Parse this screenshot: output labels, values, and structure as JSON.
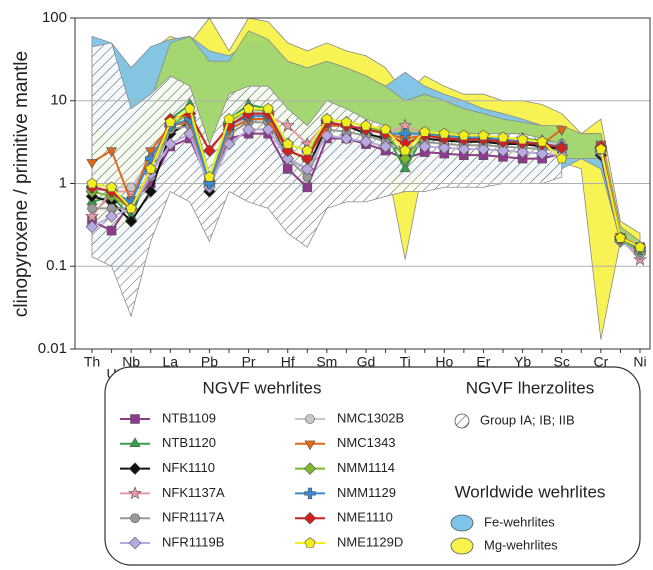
{
  "chart_data": {
    "type": "line",
    "y_label": "clinopyroxene / primitive mantle",
    "log_scale": true,
    "grid": true,
    "ylim": [
      0.01,
      100
    ],
    "yticks": [
      0.01,
      0.1,
      1,
      10,
      100
    ],
    "categories": [
      "Th",
      "U",
      "Nb",
      "Ta",
      "La",
      "Ce",
      "Pb",
      "Sr",
      "Pr",
      "Nd",
      "Hf",
      "Zr",
      "Sm",
      "Eu",
      "Gd",
      "Tb",
      "Ti",
      "Dy",
      "Ho",
      "Y",
      "Er",
      "Tm",
      "Yb",
      "Lu",
      "Sc",
      "V",
      "Cr",
      "Co",
      "Ni"
    ],
    "legend_headings": {
      "wehrlites": "NGVF wehrlites",
      "lherzolites": "NGVF lherzolites",
      "worldwide": "Worldwide wehrlites"
    },
    "fields": [
      {
        "name": "Mg-wehrlites",
        "color": "#f7f24c",
        "legend": "worldwide",
        "upper": [
          40,
          45,
          25,
          40,
          60,
          50,
          100,
          40,
          100,
          90,
          50,
          40,
          50,
          40,
          35,
          25,
          12,
          20,
          15,
          12,
          12,
          10,
          10,
          9,
          7,
          4,
          6,
          0.35,
          0.25
        ],
        "lower": [
          0.8,
          0.9,
          0.4,
          1,
          2,
          3,
          0.9,
          3,
          3,
          3,
          1.5,
          1.2,
          2.5,
          2.5,
          2.2,
          2,
          0.12,
          2,
          2,
          1.9,
          1.8,
          1.8,
          1.8,
          1.8,
          1.8,
          1.5,
          0.013,
          0.2,
          0.15
        ]
      },
      {
        "name": "Fe-wehrlites",
        "color": "#7dc3ea",
        "legend": "worldwide",
        "upper": [
          60,
          50,
          25,
          45,
          55,
          60,
          40,
          35,
          50,
          50,
          30,
          25,
          30,
          25,
          20,
          15,
          22,
          15,
          12,
          10,
          8,
          7,
          6,
          5,
          4,
          4,
          4,
          0.3,
          0.2
        ],
        "lower": [
          0.2,
          0.1,
          0.08,
          0.5,
          1.5,
          2,
          0.5,
          2,
          2,
          2.5,
          1,
          0.6,
          2,
          2,
          1.8,
          1.5,
          1,
          1.5,
          1.3,
          1.2,
          1.2,
          1.1,
          1.1,
          1.1,
          1.5,
          2,
          1.5,
          0.2,
          0.15
        ]
      },
      {
        "color": "#a5d86c",
        "upper": [
          5,
          4,
          5,
          10,
          50,
          60,
          30,
          30,
          70,
          55,
          30,
          25,
          30,
          25,
          20,
          15,
          10,
          12,
          10,
          8,
          7,
          6,
          5.5,
          5,
          5,
          4,
          4,
          0.3,
          0.2
        ],
        "lower": [
          0.3,
          0.3,
          0.3,
          0.8,
          2.5,
          3,
          0.7,
          3,
          3.5,
          3.5,
          1.4,
          0.8,
          3,
          3,
          2.8,
          2.3,
          1.5,
          2.2,
          2,
          2,
          2,
          1.9,
          1.9,
          1.8,
          2,
          2,
          2,
          0.2,
          0.15
        ]
      },
      {
        "name": "Group IA; IB; IIB",
        "color": "#444444",
        "legend": "lherzolites",
        "hatch": true,
        "upper": [
          45,
          50,
          8,
          12,
          20,
          15,
          3,
          12,
          15,
          15,
          8,
          5,
          10,
          8,
          6,
          5,
          3,
          4,
          4,
          4,
          4,
          4,
          4,
          3.5,
          3,
          null,
          null,
          null,
          null
        ],
        "lower": [
          0.13,
          0.1,
          0.025,
          0.2,
          0.8,
          0.6,
          0.2,
          0.8,
          0.6,
          0.5,
          0.25,
          0.17,
          0.5,
          0.6,
          0.6,
          0.7,
          0.8,
          0.8,
          0.9,
          0.9,
          0.9,
          1,
          1,
          1,
          1.2,
          null,
          null,
          null,
          null
        ]
      }
    ],
    "series": [
      {
        "name": "NTB1109",
        "color": "#8e3a8e",
        "marker": "square",
        "values": [
          0.35,
          0.27,
          0.6,
          1.0,
          2.8,
          3.5,
          1.0,
          3.5,
          4,
          4,
          1.5,
          0.9,
          3.5,
          3.5,
          3,
          2.5,
          2,
          2.4,
          2.3,
          2.2,
          2.2,
          2.1,
          2,
          2,
          2.3,
          null,
          2.8,
          0.22,
          0.17
        ]
      },
      {
        "name": "NTB1120",
        "color": "#35a048",
        "marker": "triangle",
        "values": [
          0.6,
          0.7,
          0.4,
          1.5,
          6,
          9,
          1.2,
          6,
          9,
          8,
          2.5,
          2,
          6,
          5.5,
          5,
          4,
          1.5,
          4,
          3.8,
          3.5,
          3.6,
          3.5,
          3.5,
          3.3,
          3,
          null,
          2.8,
          0.22,
          0.16
        ]
      },
      {
        "name": "NFK1110",
        "color": "#111111",
        "marker": "diamond",
        "values": [
          0.7,
          0.6,
          0.35,
          0.8,
          4,
          5.5,
          0.8,
          4.5,
          6,
          6,
          2,
          1.5,
          5,
          5,
          4,
          3.5,
          2.2,
          3.5,
          3.3,
          3.2,
          3.2,
          3,
          3,
          2.8,
          2.6,
          null,
          2.2,
          0.2,
          0.15
        ]
      },
      {
        "name": "NFK1137A",
        "color": "#e79aa8",
        "marker": "star",
        "values": [
          0.4,
          0.8,
          0.8,
          1.8,
          5,
          6,
          1.0,
          5,
          7,
          6.5,
          5,
          3,
          5.5,
          5,
          4.5,
          4,
          5,
          4,
          3.8,
          3.6,
          3.6,
          3.5,
          3.3,
          3,
          2.8,
          null,
          2.5,
          0.22,
          0.12
        ]
      },
      {
        "name": "NFR1117A",
        "color": "#999999",
        "marker": "circle",
        "values": [
          0.5,
          0.5,
          0.5,
          1.2,
          4.5,
          5,
          0.9,
          4,
          5.5,
          5.5,
          2,
          1.2,
          4.5,
          4.2,
          3.8,
          3.2,
          2.5,
          3.2,
          3,
          2.9,
          2.9,
          2.8,
          2.7,
          2.6,
          2.5,
          null,
          2.5,
          0.21,
          0.16
        ]
      },
      {
        "name": "NFR1119B",
        "color": "#b9a9e2",
        "marker": "diamond",
        "values": [
          0.3,
          0.4,
          0.5,
          1.3,
          3,
          4,
          0.9,
          3,
          4.5,
          4.5,
          2,
          1.5,
          3.8,
          3.5,
          3.2,
          2.8,
          2.8,
          2.8,
          2.7,
          2.6,
          2.6,
          2.5,
          2.4,
          2.3,
          2.2,
          null,
          2.4,
          0.2,
          0.14
        ]
      },
      {
        "name": "NMC1302B",
        "color": "#c8c8c8",
        "marker": "circle",
        "values": [
          0.8,
          0.9,
          0.9,
          2,
          5.5,
          6.5,
          1.1,
          5,
          7.5,
          7,
          3,
          2.5,
          6,
          5.5,
          5,
          4.5,
          3.5,
          4.2,
          4,
          3.8,
          3.8,
          3.6,
          3.4,
          3.2,
          3,
          null,
          2.6,
          0.22,
          0.17
        ]
      },
      {
        "name": "NMC1343",
        "color": "#e0681a",
        "marker": "triangle-down",
        "values": [
          1.8,
          2.5,
          0.6,
          2.5,
          5,
          5.5,
          1.0,
          4.5,
          6,
          6,
          2.5,
          2,
          5,
          5,
          4.5,
          4,
          3.5,
          3.8,
          3.5,
          3.4,
          3.4,
          3.2,
          3.1,
          3,
          4.5,
          null,
          3,
          0.23,
          0.17
        ]
      },
      {
        "name": "NMM1114",
        "color": "#7cb82e",
        "marker": "diamond",
        "values": [
          0.8,
          0.7,
          0.5,
          1.5,
          5,
          7,
          1.0,
          5.5,
          8,
          7.5,
          2.5,
          2,
          6,
          5.5,
          5,
          4.2,
          2,
          4,
          3.6,
          3.5,
          3.5,
          3.3,
          3.2,
          3,
          2.8,
          null,
          2.7,
          0.21,
          0.15
        ]
      },
      {
        "name": "NMM1129",
        "color": "#3a8ad2",
        "marker": "cross",
        "values": [
          0.9,
          0.8,
          0.6,
          2,
          5,
          6,
          1.0,
          5,
          6.5,
          6.5,
          3,
          2.5,
          5.5,
          5,
          4.5,
          4,
          4,
          4,
          3.8,
          3.6,
          3.6,
          3.4,
          3.2,
          3,
          2.8,
          null,
          2.6,
          0.22,
          0.16
        ]
      },
      {
        "name": "NME1110",
        "color": "#d21f1f",
        "marker": "diamond",
        "values": [
          0.9,
          0.8,
          0.5,
          1.5,
          6,
          7,
          2.5,
          5,
          7,
          7,
          2.5,
          2,
          5.5,
          5,
          4.5,
          4,
          3,
          3.8,
          3.5,
          3.4,
          3.4,
          3.2,
          3.1,
          3,
          2.7,
          null,
          2.8,
          0.22,
          0.17
        ]
      },
      {
        "name": "NME1129D",
        "color": "#f2ee1c",
        "marker": "pentagon",
        "values": [
          1.0,
          0.9,
          0.5,
          1.5,
          5.5,
          8,
          1.2,
          6,
          8,
          8,
          3,
          2.5,
          6,
          5.5,
          5,
          4.5,
          2.5,
          4.2,
          4,
          3.8,
          3.8,
          3.6,
          3.4,
          3.2,
          2.0,
          null,
          2.6,
          0.22,
          0.17
        ]
      }
    ]
  }
}
